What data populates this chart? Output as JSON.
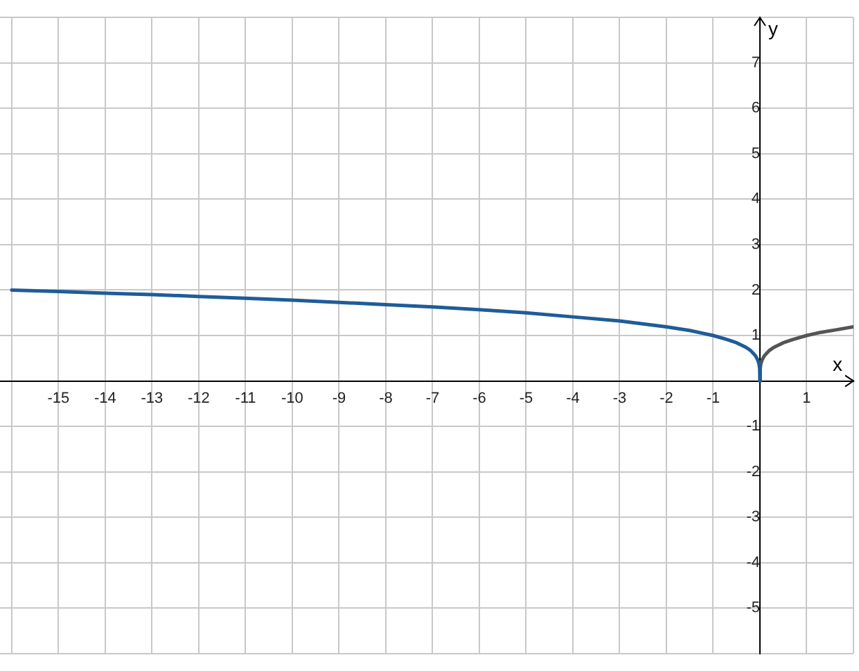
{
  "chart_data": {
    "type": "line",
    "xlabel": "x",
    "ylabel": "y",
    "xlim": [
      -16.25,
      2
    ],
    "ylim": [
      -6,
      8
    ],
    "xticks": [
      {
        "value": -16,
        "label": null
      },
      -15,
      -14,
      -13,
      -12,
      -11,
      -10,
      -9,
      -8,
      -7,
      -6,
      -5,
      -4,
      -3,
      -2,
      -1,
      {
        "value": 0,
        "label": null
      },
      1,
      {
        "value": 2,
        "label": null
      }
    ],
    "yticks": [
      {
        "value": -6,
        "label": null
      },
      -5,
      -4,
      -3,
      -2,
      -1,
      {
        "value": 0,
        "label": null
      },
      1,
      2,
      3,
      4,
      5,
      6,
      7,
      {
        "value": 8,
        "label": null
      }
    ],
    "grid": true,
    "legend": false,
    "marker": "none",
    "line_style": "solid",
    "series": [
      {
        "color": "#1f5c99",
        "x": [
          -16,
          -15,
          -14,
          -13,
          -12,
          -11,
          -10,
          -9,
          -8,
          -7,
          -6,
          -5,
          -4,
          -3,
          -2,
          -1.5,
          -1,
          -0.7,
          -0.5,
          -0.3,
          -0.2,
          -0.1,
          -0.05,
          -0.02,
          -0.005,
          0
        ],
        "values": [
          2,
          1.97,
          1.93,
          1.9,
          1.86,
          1.82,
          1.78,
          1.73,
          1.68,
          1.63,
          1.57,
          1.5,
          1.41,
          1.32,
          1.19,
          1.11,
          1,
          0.91,
          0.84,
          0.74,
          0.67,
          0.56,
          0.47,
          0.38,
          0.27,
          0
        ]
      },
      {
        "color": "#555555",
        "x": [
          0,
          0.005,
          0.02,
          0.05,
          0.1,
          0.2,
          0.3,
          0.5,
          0.7,
          1,
          1.3,
          1.6,
          2
        ],
        "values": [
          0,
          0.27,
          0.38,
          0.47,
          0.56,
          0.67,
          0.74,
          0.84,
          0.91,
          1,
          1.07,
          1.12,
          1.19
        ]
      }
    ]
  }
}
